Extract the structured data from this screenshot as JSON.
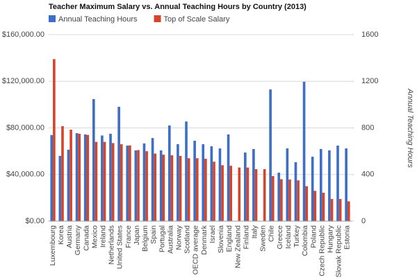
{
  "chart_data": {
    "type": "bar",
    "title": "Teacher Maximum Salary vs. Annual Teaching Hours by Country (2013)",
    "y2label": "Annual Teaching Hours",
    "categories": [
      "Luxembourg",
      "Korea",
      "Austria",
      "Germany",
      "Canada",
      "Mexico",
      "Ireland",
      "Netherlands",
      "United States",
      "France",
      "Japan",
      "Belgium",
      "Spain",
      "Portugal",
      "Australia",
      "Norway",
      "Scotland",
      "OECD average",
      "Denmark",
      "Israel",
      "Slovenia",
      "England",
      "New Zealand",
      "Finland",
      "Italy",
      "Sweden",
      "Chile",
      "Greece",
      "Iceland",
      "Turkey",
      "Colombia",
      "Poland",
      "Czech Republic",
      "Hungary",
      "Slovak Republic",
      "Estonia"
    ],
    "series": [
      {
        "name": "Annual Teaching Hours",
        "color": "#3e6ec5",
        "axis": "y2",
        "values": [
          739,
          560,
          613,
          755,
          744,
          1047,
          735,
          750,
          981,
          648,
          607,
          667,
          713,
          607,
          821,
          660,
          855,
          690,
          660,
          642,
          624,
          744,
          null,
          589,
          619,
          null,
          1130,
          416,
          624,
          506,
          1196,
          553,
          619,
          607,
          648,
          624
        ]
      },
      {
        "name": "Top of Scale Salary",
        "color": "#d5452b",
        "axis": "y",
        "values": [
          139000,
          81500,
          78500,
          75000,
          74000,
          68000,
          68000,
          67000,
          66000,
          65000,
          61000,
          60000,
          58000,
          57000,
          56500,
          56000,
          54000,
          54000,
          53500,
          51000,
          48000,
          47500,
          46000,
          46000,
          44600,
          44600,
          38700,
          36000,
          35700,
          35000,
          30000,
          26000,
          24400,
          19000,
          19000,
          17000
        ]
      }
    ],
    "ylim": [
      0,
      160000
    ],
    "yticks": [
      {
        "value": 0,
        "label": "$0.00"
      },
      {
        "value": 40000,
        "label": "$40,000.00"
      },
      {
        "value": 80000,
        "label": "$80,000.00"
      },
      {
        "value": 120000,
        "label": "$120,000.00"
      },
      {
        "value": 160000,
        "label": "$160,000.00"
      }
    ],
    "y2lim": [
      0,
      1600
    ],
    "y2ticks": [
      0,
      400,
      800,
      1200,
      1600
    ],
    "grid": true,
    "legend": "top"
  }
}
